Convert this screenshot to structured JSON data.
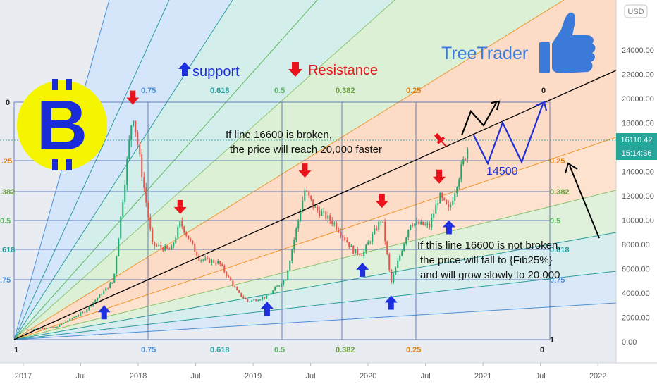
{
  "currency_badge": "USD",
  "last_price": "16110.42",
  "countdown": "15:14:36",
  "brand": {
    "name": "TreeTrader"
  },
  "legend": {
    "support": "support",
    "resistance": "Resistance"
  },
  "fib_top_labels": [
    "0.75",
    "0.618",
    "0.5",
    "0.382",
    "0.25",
    "0"
  ],
  "fib_bottom_labels": [
    "0.75",
    "0.618",
    "0.5",
    "0.382",
    "0.25",
    "0"
  ],
  "fib_left_labels": [
    "0",
    ".25",
    ".382",
    "0.5",
    ".618",
    ".75",
    "1"
  ],
  "fib_right_labels": [
    "0.25",
    "0.382",
    "0.5",
    "0.618",
    "0.75",
    "1"
  ],
  "annotations": {
    "broken_line1": "If line 16600 is broken,",
    "broken_line2": "the price will reach 20,000 faster",
    "target_label": "14500",
    "not_broken_line1": "If this line 16600 is not broken,",
    "not_broken_line2": "the price will fall to {Fib25%}",
    "not_broken_line3": "and will grow slowly to 20,000"
  },
  "colors": {
    "support_arrow": "#1e2fe0",
    "resistance_arrow": "#e8131b",
    "bitcoin_coin": "#f5f500",
    "bitcoin_symbol": "#1a2cd8",
    "trendline": "#000000",
    "projection": "#1f2fd9",
    "blue_zone": "#d6e6fa",
    "orange_zone": "#fcdcc6"
  },
  "chart_data": {
    "type": "candlestick",
    "title": "",
    "x": [
      "2017-01",
      "2017-04",
      "2017-07",
      "2017-10",
      "2017-12",
      "2018-01",
      "2018-02",
      "2018-04",
      "2018-05",
      "2018-07",
      "2018-09",
      "2018-11",
      "2018-12",
      "2019-02",
      "2019-04",
      "2019-06",
      "2019-07",
      "2019-09",
      "2019-11",
      "2019-12",
      "2020-02",
      "2020-03",
      "2020-05",
      "2020-07",
      "2020-08",
      "2020-09",
      "2020-10",
      "2020-11"
    ],
    "y": [
      1000,
      1200,
      2500,
      5000,
      19000,
      13500,
      8000,
      7500,
      9800,
      6800,
      6500,
      4000,
      3300,
      3700,
      5200,
      12500,
      11000,
      9800,
      7500,
      7200,
      10200,
      4800,
      9800,
      9500,
      12000,
      10800,
      13500,
      16110.42
    ],
    "ylim": [
      0,
      26000
    ],
    "yticks": [
      0,
      2000,
      4000,
      6000,
      8000,
      10000,
      12000,
      14000,
      16000,
      18000,
      20000,
      22000,
      24000
    ],
    "ytick_labels": [
      "0.00",
      "2000.00",
      "4000.00",
      "6000.00",
      "8000.00",
      "10000.00",
      "12000.00",
      "14000.00",
      "16000.00",
      "18000.00",
      "20000.00",
      "22000.00",
      "24000.00"
    ],
    "x_axis_labels": [
      "2017",
      "Jul",
      "2018",
      "Jul",
      "2019",
      "Jul",
      "2020",
      "Jul",
      "2021",
      "Jul",
      "2022"
    ],
    "last_value": 16110.42,
    "support_level": 14500,
    "key_level": 16600,
    "target": 20000,
    "support_arrow_points": [
      {
        "x": "2017-09",
        "y": 3000
      },
      {
        "x": "2019-02",
        "y": 3300
      },
      {
        "x": "2019-12",
        "y": 6500
      },
      {
        "x": "2020-03",
        "y": 3800
      },
      {
        "x": "2020-09",
        "y": 10000
      }
    ],
    "resistance_arrow_points": [
      {
        "x": "2017-12",
        "y": 19500
      },
      {
        "x": "2018-05",
        "y": 10500
      },
      {
        "x": "2019-06",
        "y": 13500
      },
      {
        "x": "2020-02",
        "y": 11000
      },
      {
        "x": "2020-08",
        "y": 13000
      }
    ]
  }
}
